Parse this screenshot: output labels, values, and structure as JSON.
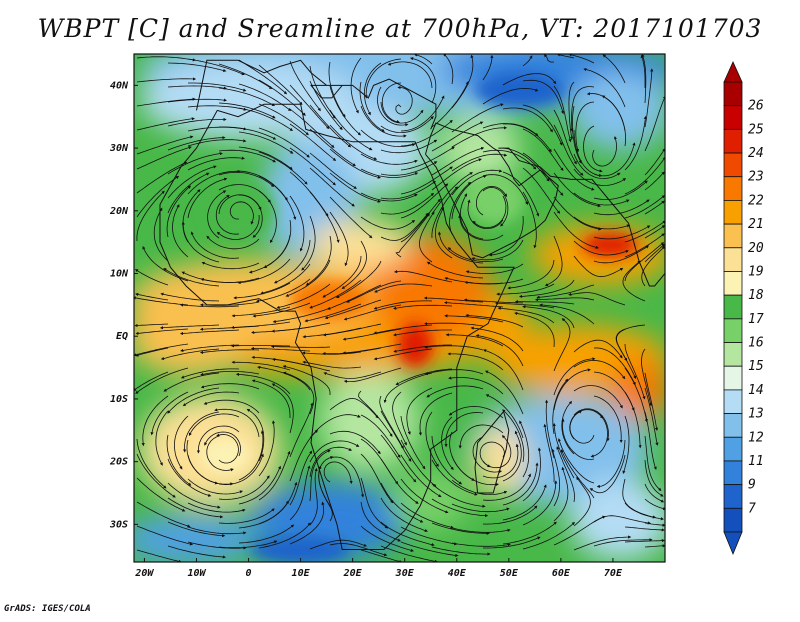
{
  "title": "WBPT [C] and Sreamline at 700hPa, VT: 2017101703",
  "credit": "GrADS: IGES/COLA",
  "lat_labels": [
    "40N",
    "30N",
    "20N",
    "10N",
    "EQ",
    "10S",
    "20S",
    "30S"
  ],
  "lat_values": [
    40,
    30,
    20,
    10,
    0,
    -10,
    -20,
    -30
  ],
  "lon_labels": [
    "20W",
    "10W",
    "0",
    "10E",
    "20E",
    "30E",
    "40E",
    "50E",
    "60E",
    "70E"
  ],
  "lon_values": [
    -20,
    -10,
    0,
    10,
    20,
    30,
    40,
    50,
    60,
    70
  ],
  "lon_range": [
    -22,
    80
  ],
  "lat_range": [
    -36,
    45
  ],
  "colorbar": {
    "labels": [
      "26",
      "25",
      "24",
      "23",
      "22",
      "21",
      "20",
      "19",
      "18",
      "17",
      "16",
      "15",
      "14",
      "13",
      "12",
      "11",
      "9",
      "7"
    ],
    "colors": [
      "#a80000",
      "#c80000",
      "#e01e00",
      "#f04a00",
      "#f87800",
      "#f8a000",
      "#fac050",
      "#fce096",
      "#fcf2b4",
      "#48b848",
      "#78d068",
      "#b4e6a0",
      "#e6f6e6",
      "#b4dcf4",
      "#82c0ec",
      "#50a0e4",
      "#3282dc",
      "#1e64cc",
      "#1450bc"
    ]
  }
}
